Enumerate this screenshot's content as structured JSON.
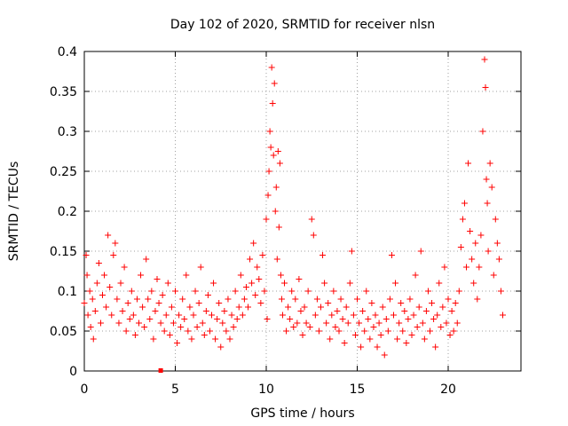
{
  "chart_data": {
    "type": "scatter",
    "title": "Day 102 of 2020, SRMTID for receiver nlsn",
    "xlabel": "GPS time / hours",
    "ylabel": "SRMTID / TECUs",
    "xlim": [
      0,
      24
    ],
    "ylim": [
      0,
      0.4
    ],
    "x_ticks": [
      0,
      5,
      10,
      15,
      20
    ],
    "x_tick_labels": [
      "0",
      "5",
      "10",
      "15",
      "20"
    ],
    "y_ticks": [
      0,
      0.05,
      0.1,
      0.15,
      0.2,
      0.25,
      0.3,
      0.35,
      0.4
    ],
    "y_tick_labels": [
      "0",
      "0.05",
      "0.1",
      "0.15",
      "0.2",
      "0.25",
      "0.3",
      "0.35",
      "0.4"
    ],
    "grid": true,
    "marker": "+",
    "marker_color": "#ff0000",
    "series": [
      {
        "points": [
          [
            0.0,
            0.085
          ],
          [
            0.1,
            0.145
          ],
          [
            0.15,
            0.12
          ],
          [
            0.2,
            0.07
          ],
          [
            0.3,
            0.1
          ],
          [
            0.35,
            0.055
          ],
          [
            0.45,
            0.09
          ],
          [
            0.5,
            0.04
          ],
          [
            0.6,
            0.075
          ],
          [
            0.7,
            0.11
          ],
          [
            0.8,
            0.135
          ],
          [
            0.9,
            0.06
          ],
          [
            1.0,
            0.095
          ],
          [
            1.1,
            0.12
          ],
          [
            1.2,
            0.08
          ],
          [
            1.3,
            0.17
          ],
          [
            1.4,
            0.105
          ],
          [
            1.5,
            0.07
          ],
          [
            1.6,
            0.145
          ],
          [
            1.7,
            0.16
          ],
          [
            1.8,
            0.09
          ],
          [
            1.9,
            0.06
          ],
          [
            2.0,
            0.11
          ],
          [
            2.1,
            0.075
          ],
          [
            2.2,
            0.13
          ],
          [
            2.3,
            0.05
          ],
          [
            2.4,
            0.085
          ],
          [
            2.5,
            0.065
          ],
          [
            2.6,
            0.1
          ],
          [
            2.7,
            0.07
          ],
          [
            2.8,
            0.045
          ],
          [
            2.9,
            0.09
          ],
          [
            3.0,
            0.06
          ],
          [
            3.1,
            0.12
          ],
          [
            3.2,
            0.08
          ],
          [
            3.3,
            0.055
          ],
          [
            3.4,
            0.14
          ],
          [
            3.5,
            0.09
          ],
          [
            3.6,
            0.065
          ],
          [
            3.7,
            0.1
          ],
          [
            3.8,
            0.04
          ],
          [
            3.9,
            0.075
          ],
          [
            4.0,
            0.115
          ],
          [
            4.1,
            0.085
          ],
          [
            4.2,
            0.06
          ],
          [
            4.3,
            0.095
          ],
          [
            4.4,
            0.05
          ],
          [
            4.5,
            0.07
          ],
          [
            4.6,
            0.11
          ],
          [
            4.7,
            0.045
          ],
          [
            4.8,
            0.08
          ],
          [
            4.9,
            0.06
          ],
          [
            5.0,
            0.1
          ],
          [
            5.1,
            0.035
          ],
          [
            5.2,
            0.07
          ],
          [
            5.3,
            0.055
          ],
          [
            5.4,
            0.09
          ],
          [
            5.5,
            0.065
          ],
          [
            5.6,
            0.12
          ],
          [
            5.7,
            0.05
          ],
          [
            5.8,
            0.08
          ],
          [
            5.9,
            0.04
          ],
          [
            6.0,
            0.07
          ],
          [
            6.1,
            0.1
          ],
          [
            6.2,
            0.055
          ],
          [
            6.3,
            0.085
          ],
          [
            6.4,
            0.13
          ],
          [
            6.5,
            0.06
          ],
          [
            6.6,
            0.045
          ],
          [
            6.7,
            0.075
          ],
          [
            6.8,
            0.095
          ],
          [
            6.9,
            0.05
          ],
          [
            7.0,
            0.07
          ],
          [
            7.1,
            0.11
          ],
          [
            7.2,
            0.04
          ],
          [
            7.3,
            0.065
          ],
          [
            7.4,
            0.085
          ],
          [
            7.5,
            0.03
          ],
          [
            7.6,
            0.06
          ],
          [
            7.7,
            0.075
          ],
          [
            7.8,
            0.05
          ],
          [
            7.9,
            0.09
          ],
          [
            8.0,
            0.04
          ],
          [
            8.1,
            0.07
          ],
          [
            8.2,
            0.055
          ],
          [
            8.3,
            0.1
          ],
          [
            8.4,
            0.065
          ],
          [
            8.5,
            0.08
          ],
          [
            8.6,
            0.12
          ],
          [
            8.7,
            0.07
          ],
          [
            8.8,
            0.09
          ],
          [
            8.9,
            0.105
          ],
          [
            9.0,
            0.08
          ],
          [
            9.1,
            0.14
          ],
          [
            9.2,
            0.11
          ],
          [
            9.3,
            0.16
          ],
          [
            9.4,
            0.095
          ],
          [
            9.5,
            0.13
          ],
          [
            9.6,
            0.115
          ],
          [
            9.7,
            0.085
          ],
          [
            9.8,
            0.145
          ],
          [
            9.9,
            0.1
          ],
          [
            10.0,
            0.19
          ],
          [
            10.05,
            0.065
          ],
          [
            10.1,
            0.22
          ],
          [
            10.15,
            0.25
          ],
          [
            10.2,
            0.3
          ],
          [
            10.25,
            0.28
          ],
          [
            10.3,
            0.38
          ],
          [
            10.35,
            0.335
          ],
          [
            10.4,
            0.27
          ],
          [
            10.45,
            0.36
          ],
          [
            10.5,
            0.2
          ],
          [
            10.55,
            0.23
          ],
          [
            10.6,
            0.14
          ],
          [
            10.65,
            0.275
          ],
          [
            10.7,
            0.18
          ],
          [
            10.75,
            0.26
          ],
          [
            10.8,
            0.12
          ],
          [
            10.85,
            0.09
          ],
          [
            10.9,
            0.07
          ],
          [
            11.0,
            0.11
          ],
          [
            11.1,
            0.05
          ],
          [
            11.2,
            0.08
          ],
          [
            11.3,
            0.065
          ],
          [
            11.4,
            0.1
          ],
          [
            11.5,
            0.055
          ],
          [
            11.6,
            0.09
          ],
          [
            11.7,
            0.06
          ],
          [
            11.8,
            0.115
          ],
          [
            11.9,
            0.075
          ],
          [
            12.0,
            0.045
          ],
          [
            12.1,
            0.08
          ],
          [
            12.2,
            0.06
          ],
          [
            12.3,
            0.1
          ],
          [
            12.4,
            0.055
          ],
          [
            12.5,
            0.19
          ],
          [
            12.6,
            0.17
          ],
          [
            12.7,
            0.07
          ],
          [
            12.8,
            0.09
          ],
          [
            12.9,
            0.05
          ],
          [
            13.0,
            0.08
          ],
          [
            13.1,
            0.145
          ],
          [
            13.2,
            0.11
          ],
          [
            13.3,
            0.06
          ],
          [
            13.4,
            0.085
          ],
          [
            13.5,
            0.04
          ],
          [
            13.6,
            0.07
          ],
          [
            13.7,
            0.1
          ],
          [
            13.8,
            0.055
          ],
          [
            13.9,
            0.075
          ],
          [
            14.0,
            0.05
          ],
          [
            14.1,
            0.09
          ],
          [
            14.2,
            0.065
          ],
          [
            14.3,
            0.035
          ],
          [
            14.4,
            0.08
          ],
          [
            14.5,
            0.06
          ],
          [
            14.6,
            0.11
          ],
          [
            14.7,
            0.15
          ],
          [
            14.8,
            0.07
          ],
          [
            14.9,
            0.045
          ],
          [
            15.0,
            0.09
          ],
          [
            15.1,
            0.06
          ],
          [
            15.2,
            0.03
          ],
          [
            15.3,
            0.075
          ],
          [
            15.4,
            0.05
          ],
          [
            15.5,
            0.1
          ],
          [
            15.6,
            0.065
          ],
          [
            15.7,
            0.04
          ],
          [
            15.8,
            0.085
          ],
          [
            15.9,
            0.055
          ],
          [
            16.0,
            0.07
          ],
          [
            16.1,
            0.03
          ],
          [
            16.2,
            0.06
          ],
          [
            16.3,
            0.045
          ],
          [
            16.4,
            0.08
          ],
          [
            16.5,
            0.02
          ],
          [
            16.6,
            0.065
          ],
          [
            16.7,
            0.05
          ],
          [
            16.8,
            0.09
          ],
          [
            16.9,
            0.145
          ],
          [
            17.0,
            0.07
          ],
          [
            17.1,
            0.11
          ],
          [
            17.2,
            0.04
          ],
          [
            17.3,
            0.06
          ],
          [
            17.4,
            0.085
          ],
          [
            17.5,
            0.05
          ],
          [
            17.6,
            0.075
          ],
          [
            17.7,
            0.035
          ],
          [
            17.8,
            0.065
          ],
          [
            17.9,
            0.09
          ],
          [
            18.0,
            0.045
          ],
          [
            18.1,
            0.07
          ],
          [
            18.2,
            0.12
          ],
          [
            18.3,
            0.055
          ],
          [
            18.4,
            0.08
          ],
          [
            18.5,
            0.15
          ],
          [
            18.6,
            0.06
          ],
          [
            18.7,
            0.04
          ],
          [
            18.8,
            0.075
          ],
          [
            18.9,
            0.1
          ],
          [
            19.0,
            0.05
          ],
          [
            19.1,
            0.085
          ],
          [
            19.2,
            0.065
          ],
          [
            19.3,
            0.03
          ],
          [
            19.4,
            0.07
          ],
          [
            19.5,
            0.11
          ],
          [
            19.6,
            0.055
          ],
          [
            19.7,
            0.08
          ],
          [
            19.8,
            0.13
          ],
          [
            19.9,
            0.06
          ],
          [
            20.0,
            0.09
          ],
          [
            20.1,
            0.045
          ],
          [
            20.2,
            0.075
          ],
          [
            20.3,
            0.05
          ],
          [
            20.4,
            0.085
          ],
          [
            20.5,
            0.06
          ],
          [
            20.6,
            0.1
          ],
          [
            20.7,
            0.155
          ],
          [
            20.8,
            0.19
          ],
          [
            20.9,
            0.21
          ],
          [
            21.0,
            0.13
          ],
          [
            21.1,
            0.26
          ],
          [
            21.2,
            0.175
          ],
          [
            21.3,
            0.14
          ],
          [
            21.4,
            0.11
          ],
          [
            21.5,
            0.16
          ],
          [
            21.6,
            0.09
          ],
          [
            21.7,
            0.13
          ],
          [
            21.8,
            0.17
          ],
          [
            21.9,
            0.3
          ],
          [
            22.0,
            0.39
          ],
          [
            22.05,
            0.355
          ],
          [
            22.1,
            0.24
          ],
          [
            22.15,
            0.21
          ],
          [
            22.2,
            0.15
          ],
          [
            22.3,
            0.26
          ],
          [
            22.4,
            0.23
          ],
          [
            22.5,
            0.12
          ],
          [
            22.6,
            0.19
          ],
          [
            22.7,
            0.16
          ],
          [
            22.8,
            0.14
          ],
          [
            22.9,
            0.1
          ],
          [
            23.0,
            0.07
          ]
        ]
      }
    ],
    "special_marker": {
      "x": 4.2,
      "y": 0
    }
  }
}
